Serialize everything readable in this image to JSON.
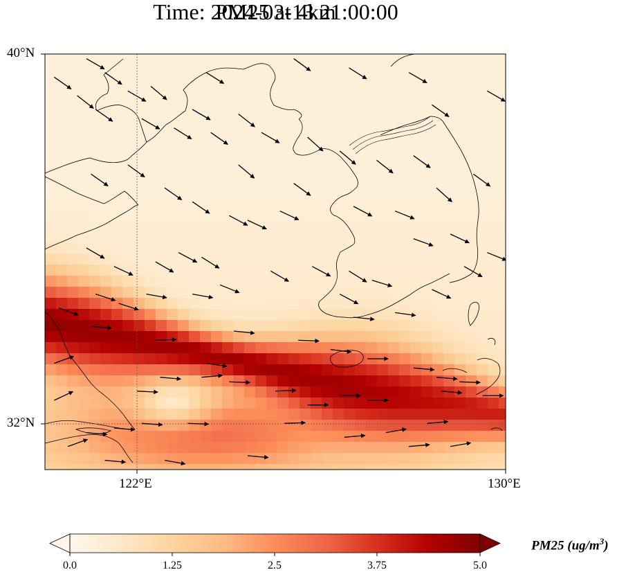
{
  "title_line1": "PM25 at 4km",
  "title_line2": "Time: 2024-03-13 21:00:00",
  "lat_labels": [
    "40°N",
    "32°N"
  ],
  "lon_labels": [
    "122°E",
    "130°E"
  ],
  "colorbar": {
    "ticks": [
      "0.0",
      "1.25",
      "2.5",
      "3.75",
      "5.0"
    ],
    "label": "PM25 (ug/m",
    "label_sup": "3",
    "label_close": ")",
    "colormap": "OrRd",
    "stops": [
      "#fff7ec",
      "#fee8c8",
      "#fdd49e",
      "#fdbb84",
      "#fc8d59",
      "#ef6548",
      "#d7301f",
      "#b30000",
      "#7f0000"
    ],
    "vmin": 0.0,
    "vmax": 5.0
  },
  "map_extent": {
    "lon": [
      120,
      130
    ],
    "lat": [
      31,
      40
    ]
  },
  "gridlines": {
    "lon": 122,
    "lat": 32,
    "style": "dotted"
  },
  "field": {
    "description_key": "pm25_plume",
    "band_center_start": [
      120,
      34.2
    ],
    "band_center_end": [
      130,
      32.2
    ],
    "peak_value": 4.2
  },
  "wind_vectors": [
    [
      120.2,
      39.5,
      125
    ],
    [
      120.9,
      39.9,
      120
    ],
    [
      120.7,
      39.1,
      128
    ],
    [
      121.3,
      39.6,
      125
    ],
    [
      121.1,
      38.8,
      125
    ],
    [
      121.8,
      39.2,
      120
    ],
    [
      122.3,
      39.3,
      130
    ],
    [
      122.1,
      38.6,
      120
    ],
    [
      122.8,
      38.4,
      122
    ],
    [
      123.2,
      38.8,
      120
    ],
    [
      123.6,
      38.3,
      125
    ],
    [
      124.2,
      38.7,
      128
    ],
    [
      124.7,
      38.3,
      120
    ],
    [
      125.7,
      38.2,
      132
    ],
    [
      126.4,
      37.9,
      130
    ],
    [
      127.2,
      37.7,
      128
    ],
    [
      128.0,
      37.8,
      126
    ],
    [
      128.5,
      37.1,
      132
    ],
    [
      129.3,
      37.4,
      126
    ],
    [
      129.6,
      39.2,
      120
    ],
    [
      128.4,
      38.9,
      125
    ],
    [
      127.9,
      39.6,
      120
    ],
    [
      126.6,
      39.7,
      122
    ],
    [
      125.4,
      39.9,
      126
    ],
    [
      123.5,
      39.6,
      122
    ],
    [
      121.8,
      37.6,
      126
    ],
    [
      121.0,
      37.4,
      125
    ],
    [
      122.6,
      37.1,
      125
    ],
    [
      123.2,
      36.8,
      124
    ],
    [
      124.4,
      36.4,
      115
    ],
    [
      125.1,
      36.6,
      115
    ],
    [
      124.2,
      37.6,
      130
    ],
    [
      125.4,
      37.2,
      126
    ],
    [
      126.7,
      36.7,
      118
    ],
    [
      127.6,
      36.6,
      112
    ],
    [
      128.0,
      36.0,
      110
    ],
    [
      128.8,
      36.1,
      115
    ],
    [
      129.6,
      35.7,
      112
    ],
    [
      129.1,
      35.4,
      120
    ],
    [
      128.4,
      34.9,
      115
    ],
    [
      127.1,
      35.1,
      107
    ],
    [
      126.6,
      35.3,
      122
    ],
    [
      125.8,
      35.4,
      118
    ],
    [
      124.9,
      35.3,
      120
    ],
    [
      123.8,
      35.0,
      112
    ],
    [
      123.2,
      34.8,
      100
    ],
    [
      122.2,
      34.8,
      100
    ],
    [
      121.6,
      34.6,
      108
    ],
    [
      121.1,
      34.8,
      108
    ],
    [
      120.3,
      34.5,
      110
    ],
    [
      121.0,
      34.1,
      95
    ],
    [
      120.9,
      35.8,
      120
    ],
    [
      121.5,
      35.4,
      115
    ],
    [
      122.4,
      35.5,
      120
    ],
    [
      122.9,
      35.7,
      118
    ],
    [
      123.4,
      35.6,
      122
    ],
    [
      124.0,
      36.5,
      118
    ],
    [
      126.4,
      34.8,
      118
    ],
    [
      126.7,
      34.3,
      96
    ],
    [
      127.6,
      34.4,
      98
    ],
    [
      126.2,
      33.6,
      97
    ],
    [
      125.5,
      33.8,
      92
    ],
    [
      124.1,
      34.0,
      96
    ],
    [
      123.5,
      33.3,
      98
    ],
    [
      122.4,
      33.8,
      88
    ],
    [
      122.5,
      33.0,
      95
    ],
    [
      123.4,
      33.0,
      85
    ],
    [
      124.0,
      32.9,
      92
    ],
    [
      125.0,
      32.7,
      88
    ],
    [
      125.7,
      32.4,
      90
    ],
    [
      126.5,
      31.7,
      85
    ],
    [
      127.4,
      31.8,
      80
    ],
    [
      127.9,
      31.5,
      85
    ],
    [
      128.8,
      31.5,
      80
    ],
    [
      128.3,
      32.0,
      85
    ],
    [
      129.5,
      32.6,
      90
    ],
    [
      129.0,
      32.9,
      92
    ],
    [
      128.5,
      33.0,
      95
    ],
    [
      128.0,
      33.2,
      95
    ],
    [
      127.0,
      33.4,
      90
    ],
    [
      126.4,
      32.6,
      90
    ],
    [
      125.2,
      32.0,
      88
    ],
    [
      124.4,
      31.3,
      95
    ],
    [
      123.1,
      32.0,
      92
    ],
    [
      122.1,
      32.0,
      94
    ],
    [
      121.5,
      31.9,
      95
    ],
    [
      120.9,
      31.8,
      95
    ],
    [
      120.5,
      31.5,
      70
    ],
    [
      120.2,
      32.5,
      65
    ],
    [
      121.3,
      31.2,
      95
    ],
    [
      122.0,
      32.7,
      93
    ],
    [
      122.6,
      31.2,
      100
    ],
    [
      127.0,
      32.5,
      90
    ],
    [
      128.6,
      32.7,
      95
    ],
    [
      120.2,
      33.3,
      70
    ]
  ]
}
